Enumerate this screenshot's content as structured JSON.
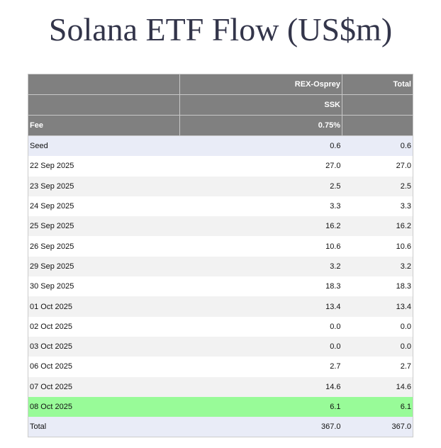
{
  "title": "Solana ETF Flow (US$m)",
  "table": {
    "header": {
      "fund": "REX-Osprey",
      "ticker": "SSK",
      "fee_label": "Fee",
      "fee": "0.75%",
      "total": "Total"
    },
    "rows": [
      [
        "Seed",
        "0.6",
        "0.6"
      ],
      [
        "22 Sep 2025",
        "27.0",
        "27.0"
      ],
      [
        "23 Sep 2025",
        "2.5",
        "2.5"
      ],
      [
        "24 Sep 2025",
        "3.3",
        "3.3"
      ],
      [
        "25 Sep 2025",
        "16.2",
        "16.2"
      ],
      [
        "26 Sep 2025",
        "10.6",
        "10.6"
      ],
      [
        "29 Sep 2025",
        "3.2",
        "3.2"
      ],
      [
        "30 Sep 2025",
        "18.3",
        "18.3"
      ],
      [
        "01 Oct 2025",
        "13.4",
        "13.4"
      ],
      [
        "02 Oct 2025",
        "0.0",
        "0.0"
      ],
      [
        "03 Oct 2025",
        "0.0",
        "0.0"
      ],
      [
        "06 Oct 2025",
        "2.7",
        "2.7"
      ],
      [
        "07 Oct 2025",
        "14.6",
        "14.6"
      ],
      [
        "08 Oct 2025",
        "6.1",
        "6.1"
      ],
      [
        "Total",
        "367.0",
        "367.0"
      ]
    ]
  }
}
